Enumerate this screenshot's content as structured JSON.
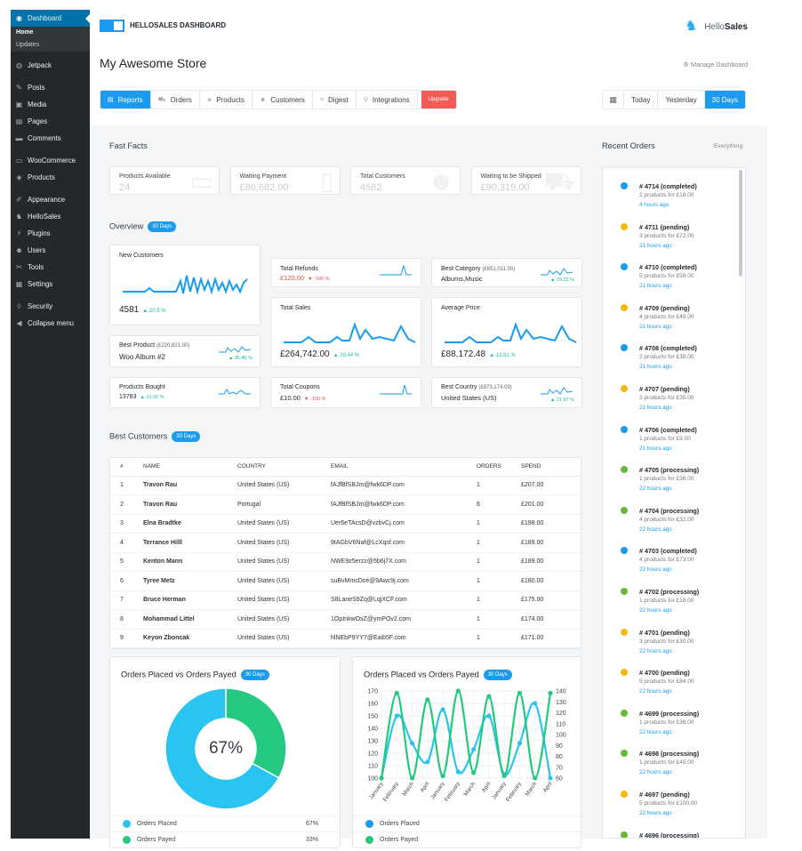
{
  "sidebar": {
    "items": [
      {
        "icon": "dashboard-icon",
        "glyph": "◉",
        "label": "Dashboard",
        "active": true
      },
      {
        "label": "Home",
        "sub": true,
        "bold": true
      },
      {
        "label": "Updates",
        "sub": true
      },
      {
        "sep": true
      },
      {
        "icon": "jetpack-icon",
        "glyph": "◍",
        "label": "Jetpack"
      },
      {
        "sep": true
      },
      {
        "icon": "pin-icon",
        "glyph": "✎",
        "label": "Posts"
      },
      {
        "icon": "media-icon",
        "glyph": "▣",
        "label": "Media"
      },
      {
        "icon": "pages-icon",
        "glyph": "▤",
        "label": "Pages"
      },
      {
        "icon": "comments-icon",
        "glyph": "▬",
        "label": "Comments"
      },
      {
        "sep": true
      },
      {
        "icon": "woocommerce-icon",
        "glyph": "▭",
        "label": "WooCommerce"
      },
      {
        "icon": "products-icon",
        "glyph": "◈",
        "label": "Products"
      },
      {
        "sep": true
      },
      {
        "icon": "appearance-icon",
        "glyph": "✐",
        "label": "Appearance"
      },
      {
        "icon": "hellosales-icon",
        "glyph": "♞",
        "label": "HelloSales"
      },
      {
        "icon": "plugins-icon",
        "glyph": "⚡",
        "label": "Plugins"
      },
      {
        "icon": "users-icon",
        "glyph": "☻",
        "label": "Users"
      },
      {
        "icon": "tools-icon",
        "glyph": "✂",
        "label": "Tools"
      },
      {
        "icon": "settings-icon",
        "glyph": "▦",
        "label": "Settings"
      },
      {
        "sep": true
      },
      {
        "icon": "security-icon",
        "glyph": "◊",
        "label": "Security"
      },
      {
        "icon": "collapse-icon",
        "glyph": "◀",
        "label": "Collapse menu"
      }
    ]
  },
  "header": {
    "app_title": "HELLOSALES DASHBOARD",
    "brand_a": "Hello",
    "brand_b": "Sales",
    "store": "My Awesome Store",
    "manage": "Manage Dashboard"
  },
  "tabs": [
    {
      "glyph": "▤",
      "label": "Reports",
      "on": true
    },
    {
      "glyph": "⛟",
      "label": "Orders"
    },
    {
      "glyph": "◈",
      "label": "Products"
    },
    {
      "glyph": "☻",
      "label": "Customers"
    },
    {
      "glyph": "≡",
      "label": "Digest"
    },
    {
      "glyph": "⚲",
      "label": "Integrations"
    },
    {
      "glyph": "",
      "label": "Upgrade",
      "up": true
    }
  ],
  "ranges": {
    "today": "Today",
    "yesterday": "Yesterday",
    "days30": "30 Days"
  },
  "fast_facts": {
    "title": "Fast Facts",
    "cards": [
      {
        "label": "Products Available",
        "value": "24"
      },
      {
        "label": "Waiting Payment",
        "value": "£86,682.00"
      },
      {
        "label": "Total Customers",
        "value": "4582"
      },
      {
        "label": "Waiting to be Shipped",
        "value": "£90,319.00"
      }
    ]
  },
  "overview": {
    "title": "Overview",
    "badge": "30 Days",
    "new_customers": {
      "label": "New Customers",
      "value": "4581",
      "change": "20.5 %"
    },
    "best_product": {
      "label": "Best Product",
      "amount": "(£220,821.00)",
      "value": "Woo Album #2",
      "change": "35.45 %"
    },
    "products_bought": {
      "label": "Products Bought",
      "value": "13783",
      "change": "31.91 %"
    },
    "total_refunds": {
      "label": "Total Refunds",
      "value": "£120.00",
      "change": "-100 %"
    },
    "total_sales": {
      "label": "Total Sales",
      "value": "£264,742.00",
      "change": "20.44 %"
    },
    "total_coupons": {
      "label": "Total Coupons",
      "value": "£10.00",
      "change": "-100 %"
    },
    "best_category": {
      "label": "Best Category",
      "amount": "(£651,011.00)",
      "value": "Albums,Music",
      "change": "29.22 %"
    },
    "average_price": {
      "label": "Average Price",
      "value": "£88,172.48",
      "change": "13.91 %"
    },
    "best_country": {
      "label": "Best Country",
      "amount": "(£973,174.00)",
      "value": "United States (US)",
      "change": "21.97 %"
    }
  },
  "best_customers": {
    "title": "Best Customers",
    "badge": "30 Days",
    "headers": [
      "#",
      "NAME",
      "COUNTRY",
      "EMAIL",
      "ORDERS",
      "SPEND"
    ],
    "rows": [
      [
        "1",
        "Travon Rau",
        "United States (US)",
        "fAJfBfSBJm@fwk6DP.com",
        "1",
        "£207.00"
      ],
      [
        "2",
        "Travon Rau",
        "Portugal",
        "fAJfBfSBJm@fwk6DP.com",
        "6",
        "£201.00"
      ],
      [
        "3",
        "Elna Bradtke",
        "United States (US)",
        "Uer6eTAcsD@vzbvCj.com",
        "1",
        "£198.00"
      ],
      [
        "4",
        "Terrance Hilll",
        "United States (US)",
        "9tAGbV6Naf@LcXqsf.com",
        "1",
        "£189.00"
      ],
      [
        "5",
        "Kenton Mann",
        "United States (US)",
        "NWE9z5erzz@5b6j7X.com",
        "1",
        "£189.00"
      ],
      [
        "6",
        "Tyree Metz",
        "United States (US)",
        "suBvMmcDce@9Awc9j.com",
        "1",
        "£180.00"
      ],
      [
        "7",
        "Bruce Herman",
        "United States (US)",
        "S8LaneS9Zq@LqjXCF.com",
        "1",
        "£175.00"
      ],
      [
        "8",
        "Mohammad Littel",
        "United States (US)",
        "1OpInkwOxZ@ymPOv2.com",
        "1",
        "£174.00"
      ],
      [
        "9",
        "Keyon Zboncak",
        "United States (US)",
        "hlNEbP9YY7@Eaib5F.com",
        "1",
        "£171.00"
      ]
    ]
  },
  "pie_chart": {
    "title": "Orders Placed vs Orders Payed",
    "badge": "30 Days",
    "center": "67%",
    "legend": [
      {
        "label": "Orders Placed",
        "value": "67%",
        "color": "#29c4f0"
      },
      {
        "label": "Orders Payed",
        "value": "33%",
        "color": "#22c97e"
      }
    ]
  },
  "line_chart_title": "Orders Placed vs Orders Payed",
  "line_chart_badge": "30 Days",
  "line_legend": [
    {
      "label": "Orders Placed",
      "color": "#1a9bef"
    },
    {
      "label": "Orders Payed",
      "color": "#22c97e"
    }
  ],
  "chart_data": [
    {
      "type": "pie",
      "categories": [
        "Orders Placed",
        "Orders Payed"
      ],
      "values": [
        67,
        33
      ]
    },
    {
      "type": "line",
      "x": [
        "January",
        "February",
        "March",
        "April",
        "January",
        "February",
        "March",
        "April",
        "January",
        "February",
        "March",
        "April"
      ],
      "ylim": [
        100,
        170
      ],
      "y2lim": [
        60,
        140
      ],
      "yticks": [
        "170",
        "160",
        "150",
        "140",
        "130",
        "120",
        "110",
        "100"
      ],
      "y2ticks": [
        "140",
        "130",
        "120",
        "110",
        "100",
        "90",
        "80",
        "70",
        "60"
      ],
      "series": [
        {
          "name": "Orders Placed",
          "color": "#29c4f0",
          "axis": "left",
          "values": [
            100,
            150,
            128,
            113,
            155,
            105,
            123,
            150,
            103,
            128,
            160,
            100
          ]
        },
        {
          "name": "Orders Payed",
          "color": "#22c97e",
          "axis": "right",
          "values": [
            60,
            138,
            60,
            132,
            62,
            140,
            65,
            135,
            62,
            138,
            60,
            138
          ]
        }
      ]
    }
  ],
  "recent_orders": {
    "title": "Recent Orders",
    "link": "Everything",
    "items": [
      {
        "t": "# 4714 (completed)",
        "d": "2 products for £18.00",
        "a": "4 hours ago",
        "c": "#1a9bef"
      },
      {
        "t": "# 4711 (pending)",
        "d": "3 products for £72.00",
        "a": "21 hours ago",
        "c": "#f6b90e"
      },
      {
        "t": "# 4710 (completed)",
        "d": "5 products for £59.00",
        "a": "21 hours ago",
        "c": "#1a9bef"
      },
      {
        "t": "# 4709 (pending)",
        "d": "4 products for £49.00",
        "a": "21 hours ago",
        "c": "#f6b90e"
      },
      {
        "t": "# 4708 (completed)",
        "d": "2 products for £38.00",
        "a": "21 hours ago",
        "c": "#1a9bef"
      },
      {
        "t": "# 4707 (pending)",
        "d": "3 products for £35.00",
        "a": "21 hours ago",
        "c": "#f6b90e"
      },
      {
        "t": "# 4706 (completed)",
        "d": "1 products for £9.00",
        "a": "21 hours ago",
        "c": "#1a9bef"
      },
      {
        "t": "# 4705 (processing)",
        "d": "1 products for £36.00",
        "a": "22 hours ago",
        "c": "#6ab83a"
      },
      {
        "t": "# 4704 (processing)",
        "d": "4 products for £32.00",
        "a": "22 hours ago",
        "c": "#6ab83a"
      },
      {
        "t": "# 4703 (completed)",
        "d": "4 products for £73.00",
        "a": "22 hours ago",
        "c": "#1a9bef"
      },
      {
        "t": "# 4702 (processing)",
        "d": "1 products for £18.00",
        "a": "22 hours ago",
        "c": "#6ab83a"
      },
      {
        "t": "# 4701 (pending)",
        "d": "3 products for £30.00",
        "a": "22 hours ago",
        "c": "#f6b90e"
      },
      {
        "t": "# 4700 (pending)",
        "d": "5 products for £84.00",
        "a": "22 hours ago",
        "c": "#f6b90e"
      },
      {
        "t": "# 4699 (processing)",
        "d": "1 products for £36.00",
        "a": "22 hours ago",
        "c": "#6ab83a"
      },
      {
        "t": "# 4698 (processing)",
        "d": "1 products for £45.00",
        "a": "22 hours ago",
        "c": "#6ab83a"
      },
      {
        "t": "# 4697 (pending)",
        "d": "5 products for £100.00",
        "a": "22 hours ago",
        "c": "#f6b90e"
      },
      {
        "t": "# 4696 (processing)",
        "d": "",
        "a": "",
        "c": "#6ab83a"
      }
    ]
  }
}
